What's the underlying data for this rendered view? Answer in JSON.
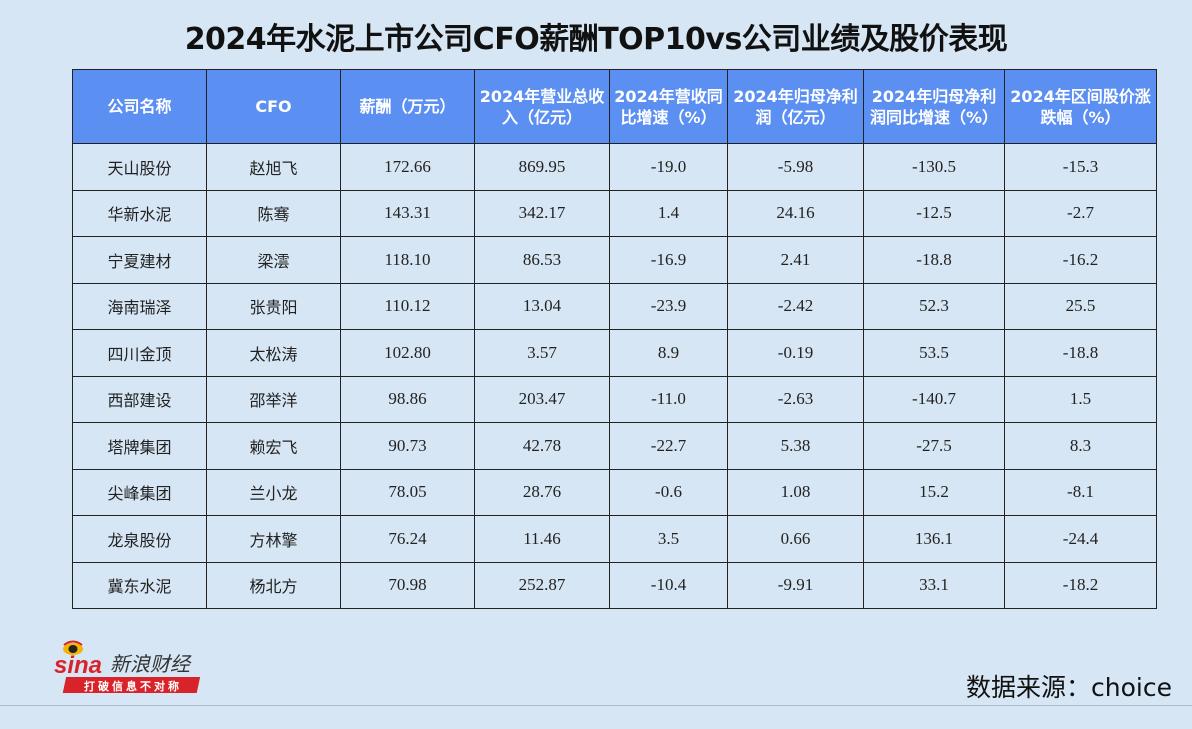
{
  "title": "2024年水泥上市公司CFO薪酬TOP10vs公司业绩及股价表现",
  "chart_data": {
    "type": "table",
    "columns": [
      "公司名称",
      "CFO",
      "薪酬（万元）",
      "2024年营业总收入（亿元）",
      "2024年营收同比增速（%）",
      "2024年归母净利润（亿元）",
      "2024年归母净利润同比增速（%）",
      "2024年区间股价涨跌幅（%）"
    ],
    "header_lines": [
      [
        "公司名称"
      ],
      [
        "CFO"
      ],
      [
        "薪酬（万元）"
      ],
      [
        "2024年营业总收",
        "入（亿元）"
      ],
      [
        "2024年营收同",
        "比增速（%）"
      ],
      [
        "2024年归母净利",
        "润（亿元）"
      ],
      [
        "2024年归母净利",
        "润同比增速（%）"
      ],
      [
        "2024年区间股价涨",
        "跌幅（%）"
      ]
    ],
    "rows": [
      [
        "天山股份",
        "赵旭飞",
        "172.66",
        "869.95",
        "-19.0",
        "-5.98",
        "-130.5",
        "-15.3"
      ],
      [
        "华新水泥",
        "陈骞",
        "143.31",
        "342.17",
        "1.4",
        "24.16",
        "-12.5",
        "-2.7"
      ],
      [
        "宁夏建材",
        "梁澐",
        "118.10",
        "86.53",
        "-16.9",
        "2.41",
        "-18.8",
        "-16.2"
      ],
      [
        "海南瑞泽",
        "张贵阳",
        "110.12",
        "13.04",
        "-23.9",
        "-2.42",
        "52.3",
        "25.5"
      ],
      [
        "四川金顶",
        "太松涛",
        "102.80",
        "3.57",
        "8.9",
        "-0.19",
        "53.5",
        "-18.8"
      ],
      [
        "西部建设",
        "邵举洋",
        "98.86",
        "203.47",
        "-11.0",
        "-2.63",
        "-140.7",
        "1.5"
      ],
      [
        "塔牌集团",
        "赖宏飞",
        "90.73",
        "42.78",
        "-22.7",
        "5.38",
        "-27.5",
        "8.3"
      ],
      [
        "尖峰集团",
        "兰小龙",
        "78.05",
        "28.76",
        "-0.6",
        "1.08",
        "15.2",
        "-8.1"
      ],
      [
        "龙泉股份",
        "方林擎",
        "76.24",
        "11.46",
        "3.5",
        "0.66",
        "136.1",
        "-24.4"
      ],
      [
        "冀东水泥",
        "杨北方",
        "70.98",
        "252.87",
        "-10.4",
        "-9.91",
        "33.1",
        "-18.2"
      ]
    ]
  },
  "logo": {
    "brand": "sina",
    "name": "新浪财经",
    "slogan": "打破信息不对称"
  },
  "source": "数据来源：choice",
  "colors": {
    "background": "#d7e6f4",
    "header": "#5b8ff2",
    "logo_red": "#d9232b",
    "logo_yellow": "#f5b400"
  }
}
